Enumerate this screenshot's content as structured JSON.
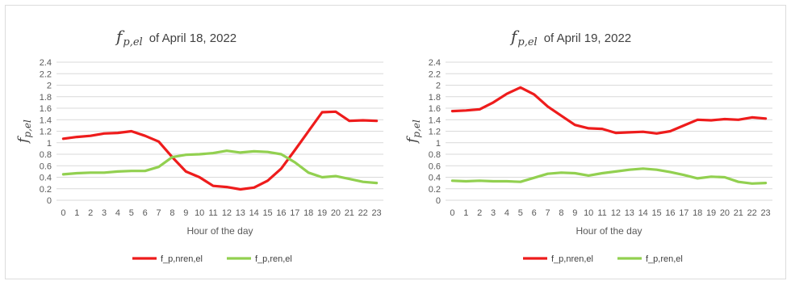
{
  "colors": {
    "nren": "#ee1c1c",
    "ren": "#92d050",
    "grid": "#d9d9d9",
    "text": "#595959"
  },
  "chart_data": [
    {
      "type": "line",
      "title": {
        "symbol": "f",
        "subscript": "p,el",
        "text": "of April 18, 2022"
      },
      "xlabel": "Hour of the day",
      "ylabel": {
        "symbol": "f",
        "subscript": "p,el"
      },
      "ylim": [
        0,
        2.4
      ],
      "ytick_step": 0.2,
      "yticks": [
        "0",
        "0.2",
        "0.4",
        "0.6",
        "0.8",
        "1",
        "1.2",
        "1.4",
        "1.6",
        "1.8",
        "2",
        "2.2",
        "2.4"
      ],
      "categories": [
        "0",
        "1",
        "2",
        "3",
        "4",
        "5",
        "6",
        "7",
        "8",
        "9",
        "10",
        "11",
        "12",
        "13",
        "14",
        "15",
        "16",
        "17",
        "18",
        "19",
        "20",
        "21",
        "22",
        "23"
      ],
      "grid": true,
      "legend": "bottom",
      "series": [
        {
          "name": "f_p,nren,el",
          "color_key": "nren",
          "values": [
            1.07,
            1.1,
            1.12,
            1.16,
            1.17,
            1.2,
            1.12,
            1.02,
            0.75,
            0.5,
            0.4,
            0.25,
            0.23,
            0.19,
            0.22,
            0.34,
            0.55,
            0.87,
            1.2,
            1.53,
            1.54,
            1.38,
            1.39,
            1.38
          ]
        },
        {
          "name": "f_p,ren,el",
          "color_key": "ren",
          "values": [
            0.45,
            0.47,
            0.48,
            0.48,
            0.5,
            0.51,
            0.51,
            0.58,
            0.75,
            0.79,
            0.8,
            0.82,
            0.86,
            0.83,
            0.85,
            0.84,
            0.8,
            0.66,
            0.48,
            0.4,
            0.42,
            0.37,
            0.32,
            0.3
          ]
        }
      ]
    },
    {
      "type": "line",
      "title": {
        "symbol": "f",
        "subscript": "p,el",
        "text": "of April 19, 2022"
      },
      "xlabel": "Hour of the day",
      "ylabel": {
        "symbol": "f",
        "subscript": "p,el"
      },
      "ylim": [
        0,
        2.4
      ],
      "ytick_step": 0.2,
      "yticks": [
        "0",
        "0.2",
        "0.4",
        "0.6",
        "0.8",
        "1",
        "1.2",
        "1.4",
        "1.6",
        "1.8",
        "2",
        "2.2",
        "2.4"
      ],
      "categories": [
        "0",
        "1",
        "2",
        "3",
        "4",
        "5",
        "6",
        "7",
        "8",
        "9",
        "10",
        "11",
        "12",
        "13",
        "14",
        "15",
        "16",
        "17",
        "18",
        "19",
        "20",
        "21",
        "22",
        "23"
      ],
      "grid": true,
      "legend": "bottom",
      "series": [
        {
          "name": "f_p,nren,el",
          "color_key": "nren",
          "values": [
            1.55,
            1.56,
            1.58,
            1.7,
            1.85,
            1.96,
            1.84,
            1.63,
            1.47,
            1.31,
            1.25,
            1.24,
            1.17,
            1.18,
            1.19,
            1.16,
            1.2,
            1.3,
            1.4,
            1.39,
            1.41,
            1.4,
            1.44,
            1.42
          ]
        },
        {
          "name": "f_p,ren,el",
          "color_key": "ren",
          "values": [
            0.34,
            0.33,
            0.34,
            0.33,
            0.33,
            0.32,
            0.39,
            0.46,
            0.48,
            0.47,
            0.43,
            0.47,
            0.5,
            0.53,
            0.55,
            0.53,
            0.49,
            0.44,
            0.38,
            0.41,
            0.4,
            0.32,
            0.29,
            0.3
          ]
        }
      ]
    }
  ]
}
